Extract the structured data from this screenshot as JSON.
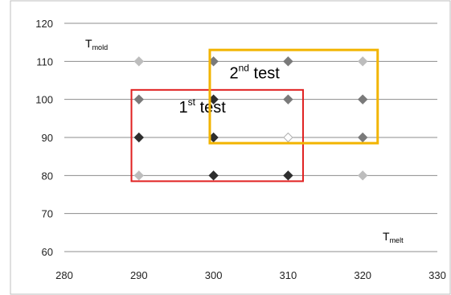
{
  "chart_data": {
    "type": "scatter",
    "xlim": [
      280,
      330
    ],
    "ylim": [
      60,
      120
    ],
    "x_ticks": [
      "280",
      "290",
      "300",
      "310",
      "320",
      "330"
    ],
    "y_ticks": [
      "60",
      "70",
      "80",
      "90",
      "100",
      "110",
      "120"
    ],
    "grid": "horizontal",
    "xlabel": {
      "main": "T",
      "sub": "melt"
    },
    "ylabel": {
      "main": "T",
      "sub": "mold"
    },
    "points": [
      {
        "x": 290,
        "y": 110,
        "shade": "light"
      },
      {
        "x": 300,
        "y": 110,
        "shade": "medium"
      },
      {
        "x": 310,
        "y": 110,
        "shade": "medium"
      },
      {
        "x": 320,
        "y": 110,
        "shade": "light"
      },
      {
        "x": 290,
        "y": 100,
        "shade": "medium"
      },
      {
        "x": 300,
        "y": 100,
        "shade": "dark"
      },
      {
        "x": 310,
        "y": 100,
        "shade": "medium"
      },
      {
        "x": 320,
        "y": 100,
        "shade": "medium"
      },
      {
        "x": 290,
        "y": 90,
        "shade": "dark"
      },
      {
        "x": 300,
        "y": 90,
        "shade": "dark"
      },
      {
        "x": 310,
        "y": 90,
        "shade": "white"
      },
      {
        "x": 320,
        "y": 90,
        "shade": "medium"
      },
      {
        "x": 290,
        "y": 80,
        "shade": "light"
      },
      {
        "x": 300,
        "y": 80,
        "shade": "dark"
      },
      {
        "x": 310,
        "y": 80,
        "shade": "dark"
      },
      {
        "x": 320,
        "y": 80,
        "shade": "light"
      }
    ],
    "regions": [
      {
        "name": "first-test",
        "label_main": "1",
        "label_sup": "st",
        "label_rest": " test",
        "x_range": [
          289,
          312
        ],
        "y_range": [
          78.5,
          102.5
        ],
        "color": "#e02020"
      },
      {
        "name": "second-test",
        "label_main": "2",
        "label_sup": "nd",
        "label_rest": " test",
        "x_range": [
          299.5,
          322
        ],
        "y_range": [
          88.5,
          113
        ],
        "color": "#f2b400"
      }
    ],
    "colors": {
      "light": "#bdbdbd",
      "medium": "#7a7a7a",
      "dark": "#2e2e2e",
      "white": "#ffffff",
      "grid": "#8c8c8c",
      "frame": "#bfbfbf"
    }
  }
}
